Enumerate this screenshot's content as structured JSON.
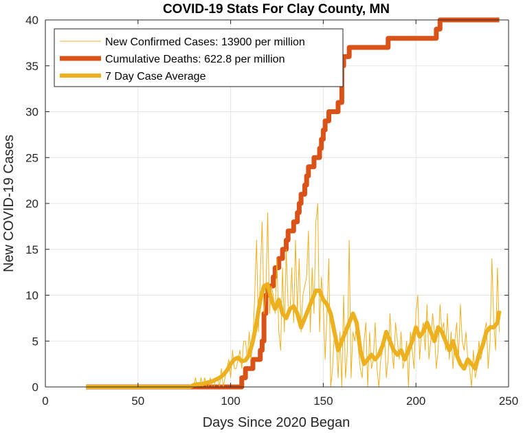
{
  "colors": {
    "new_cases": "#EDB120",
    "deaths": "#D95319",
    "avg": "#EDB120",
    "grid": "#E6E6E6",
    "axis": "#262626"
  },
  "chart_data": {
    "type": "line",
    "title": "COVID-19 Stats For Clay County, MN",
    "xlabel": "Days Since 2020 Began",
    "ylabel": "New COVID-19 Cases",
    "xlim": [
      0,
      250
    ],
    "ylim": [
      0,
      40
    ],
    "xticks": [
      0,
      50,
      100,
      150,
      200,
      250
    ],
    "yticks": [
      0,
      5,
      10,
      15,
      20,
      25,
      30,
      35,
      40
    ],
    "grid": true,
    "legend": {
      "placement": "top-left",
      "entries": [
        "New Confirmed Cases: 13900 per million",
        "Cumulative Deaths: 622.8 per million",
        "7 Day Case Average"
      ]
    },
    "series": [
      {
        "name": "New Confirmed Cases: 13900 per million",
        "style": "thin",
        "x": [
          22,
          78,
          79,
          80,
          81,
          82,
          83,
          84,
          85,
          86,
          87,
          88,
          89,
          90,
          91,
          92,
          93,
          94,
          95,
          96,
          97,
          98,
          99,
          100,
          101,
          102,
          103,
          104,
          105,
          106,
          107,
          108,
          109,
          110,
          111,
          112,
          113,
          114,
          115,
          116,
          117,
          118,
          119,
          120,
          121,
          122,
          123,
          124,
          125,
          126,
          127,
          128,
          129,
          130,
          131,
          132,
          133,
          134,
          135,
          136,
          137,
          138,
          139,
          140,
          141,
          142,
          143,
          144,
          145,
          146,
          147,
          148,
          149,
          150,
          151,
          152,
          153,
          154,
          155,
          156,
          157,
          158,
          159,
          160,
          161,
          162,
          163,
          164,
          165,
          166,
          167,
          168,
          169,
          170,
          171,
          172,
          173,
          174,
          175,
          176,
          177,
          178,
          179,
          180,
          181,
          182,
          183,
          184,
          185,
          186,
          187,
          188,
          189,
          190,
          191,
          192,
          193,
          194,
          195,
          196,
          197,
          198,
          199,
          200,
          201,
          202,
          203,
          204,
          205,
          206,
          207,
          208,
          209,
          210,
          211,
          212,
          213,
          214,
          215,
          216,
          217,
          218,
          219,
          220,
          221,
          222,
          223,
          224,
          225,
          226,
          227,
          228,
          229,
          230,
          231,
          232,
          233,
          234,
          235,
          236,
          237,
          238,
          239,
          240,
          241,
          242,
          243,
          244,
          245
        ],
        "y": [
          0,
          0,
          0,
          0,
          1,
          0,
          0,
          1,
          0,
          1,
          0,
          0,
          1,
          0,
          0,
          1,
          1,
          0,
          2,
          0,
          1,
          2,
          3,
          1,
          4,
          2,
          2,
          3,
          4,
          2,
          5,
          5,
          3,
          6,
          3,
          5,
          10,
          16,
          6,
          12,
          18,
          8,
          10,
          19,
          8,
          11,
          10,
          8,
          14,
          6,
          4,
          13,
          6,
          15,
          9,
          8,
          13,
          7,
          16,
          8,
          14,
          6,
          10,
          11,
          12,
          17,
          6,
          13,
          8,
          18,
          20,
          6,
          12,
          9,
          3,
          8,
          14,
          0,
          2,
          6,
          5,
          1,
          6,
          0,
          10,
          1,
          4,
          16,
          1,
          6,
          5,
          7,
          4,
          2,
          1,
          5,
          7,
          0,
          6,
          2,
          3,
          7,
          2,
          0,
          3,
          4,
          6,
          1,
          3,
          8,
          4,
          2,
          7,
          5,
          3,
          6,
          2,
          3,
          5,
          0,
          6,
          4,
          2,
          8,
          10,
          3,
          6,
          7,
          4,
          9,
          3,
          5,
          8,
          6,
          2,
          4,
          9,
          6,
          7,
          4,
          8,
          3,
          6,
          2,
          5,
          7,
          3,
          9,
          5,
          4,
          6,
          3,
          2,
          0,
          4,
          1,
          2,
          5,
          3,
          4,
          6,
          7,
          2,
          5,
          14,
          7,
          4,
          13,
          6
        ]
      },
      {
        "name": "Cumulative Deaths: 622.8 per million",
        "style": "thick",
        "x": [
          22,
          104,
          106,
          108,
          110,
          112,
          113,
          114,
          116,
          117,
          118,
          119,
          120,
          121,
          122,
          123,
          124,
          125,
          126,
          127,
          128,
          129,
          130,
          131,
          132,
          133,
          134,
          135,
          136,
          137,
          138,
          139,
          140,
          141,
          142,
          143,
          144,
          145,
          146,
          147,
          148,
          149,
          150,
          151,
          152,
          153,
          154,
          155,
          156,
          157,
          158,
          159,
          160,
          161,
          162,
          163,
          164,
          165,
          166,
          167,
          168,
          170,
          172,
          174,
          176,
          178,
          180,
          182,
          184,
          185,
          186,
          188,
          190,
          192,
          194,
          196,
          198,
          200,
          202,
          204,
          206,
          208,
          210,
          211,
          212,
          213,
          214,
          216,
          220,
          225,
          230,
          235,
          240,
          245
        ],
        "y": [
          0,
          0,
          1,
          2,
          2,
          3,
          3,
          3,
          4,
          5,
          8,
          10,
          11,
          11,
          11,
          12,
          13,
          13,
          14,
          14,
          15,
          15,
          16,
          17,
          17,
          17,
          18,
          18,
          19,
          20,
          21,
          21,
          22,
          23,
          24,
          24,
          24,
          25,
          25,
          25,
          26,
          27,
          28,
          29,
          29,
          30,
          30,
          30,
          30,
          30,
          31,
          31,
          35,
          36,
          36,
          36,
          37,
          37,
          37,
          37,
          37,
          37,
          37,
          37,
          37,
          37,
          37,
          37,
          37,
          38,
          38,
          38,
          38,
          38,
          38,
          38,
          38,
          38,
          38,
          38,
          38,
          38,
          38,
          39,
          39,
          40,
          40,
          40,
          40,
          40,
          40,
          40,
          40,
          40
        ]
      },
      {
        "name": "7 Day Case Average",
        "style": "medium",
        "x": [
          22,
          78,
          80,
          82,
          84,
          86,
          88,
          90,
          92,
          94,
          96,
          98,
          100,
          102,
          104,
          106,
          108,
          110,
          112,
          114,
          116,
          118,
          120,
          122,
          124,
          126,
          128,
          130,
          132,
          134,
          136,
          138,
          140,
          142,
          144,
          146,
          148,
          150,
          152,
          154,
          156,
          158,
          160,
          162,
          164,
          166,
          168,
          170,
          172,
          174,
          176,
          178,
          180,
          182,
          184,
          186,
          188,
          190,
          192,
          194,
          196,
          198,
          200,
          202,
          204,
          206,
          208,
          210,
          212,
          214,
          216,
          218,
          220,
          222,
          224,
          226,
          228,
          230,
          232,
          234,
          236,
          238,
          240,
          242,
          244,
          245
        ],
        "y": [
          0,
          0,
          0.2,
          0.3,
          0.3,
          0.4,
          0.5,
          0.6,
          0.8,
          1.0,
          1.3,
          1.8,
          2.5,
          3.0,
          3.2,
          2.8,
          2.9,
          3.5,
          5,
          7,
          9.5,
          11,
          11.2,
          9.5,
          8.5,
          9.5,
          8,
          7.5,
          8.5,
          8.8,
          8,
          6.5,
          7.5,
          8.5,
          9.5,
          10.5,
          10.5,
          9.5,
          9,
          8,
          6,
          4,
          5,
          6,
          7,
          8,
          7,
          4,
          2.5,
          3,
          3.5,
          3,
          3.5,
          4.5,
          6,
          5,
          4,
          3.5,
          4,
          3,
          4,
          5,
          6.5,
          5.5,
          6,
          7,
          6,
          5,
          6.5,
          6,
          5,
          4,
          5,
          3.5,
          2.5,
          2,
          3,
          2.5,
          2,
          3.5,
          4.5,
          6,
          6.5,
          6.5,
          7,
          8.3
        ]
      }
    ]
  }
}
